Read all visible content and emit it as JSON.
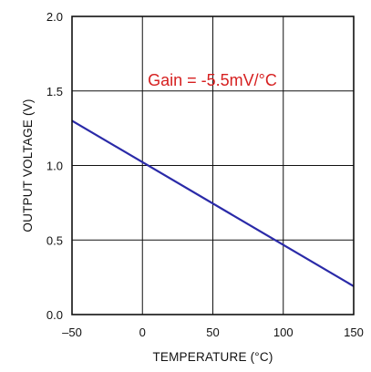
{
  "chart_data": {
    "type": "line",
    "xlabel": "TEMPERATURE (°C)",
    "ylabel": "OUTPUT VOLTAGE (V)",
    "xlim": [
      -50,
      150
    ],
    "ylim": [
      0.0,
      2.0
    ],
    "xticks": [
      -50,
      0,
      50,
      100,
      150
    ],
    "xtick_labels": [
      "–50",
      "0",
      "50",
      "100",
      "150"
    ],
    "yticks": [
      0.0,
      0.5,
      1.0,
      1.5,
      2.0
    ],
    "ytick_labels": [
      "0.0",
      "0.5",
      "1.0",
      "1.5",
      "2.0"
    ],
    "grid": true,
    "annotation": "Gain = -5.5mV/°C",
    "series": [
      {
        "color": "#2a2aa8",
        "x": [
          -50,
          150
        ],
        "y": [
          1.3,
          0.19
        ]
      }
    ]
  },
  "colors": {
    "line": "#2a2aa8",
    "annotation": "#d62020",
    "grid": "#111111"
  }
}
